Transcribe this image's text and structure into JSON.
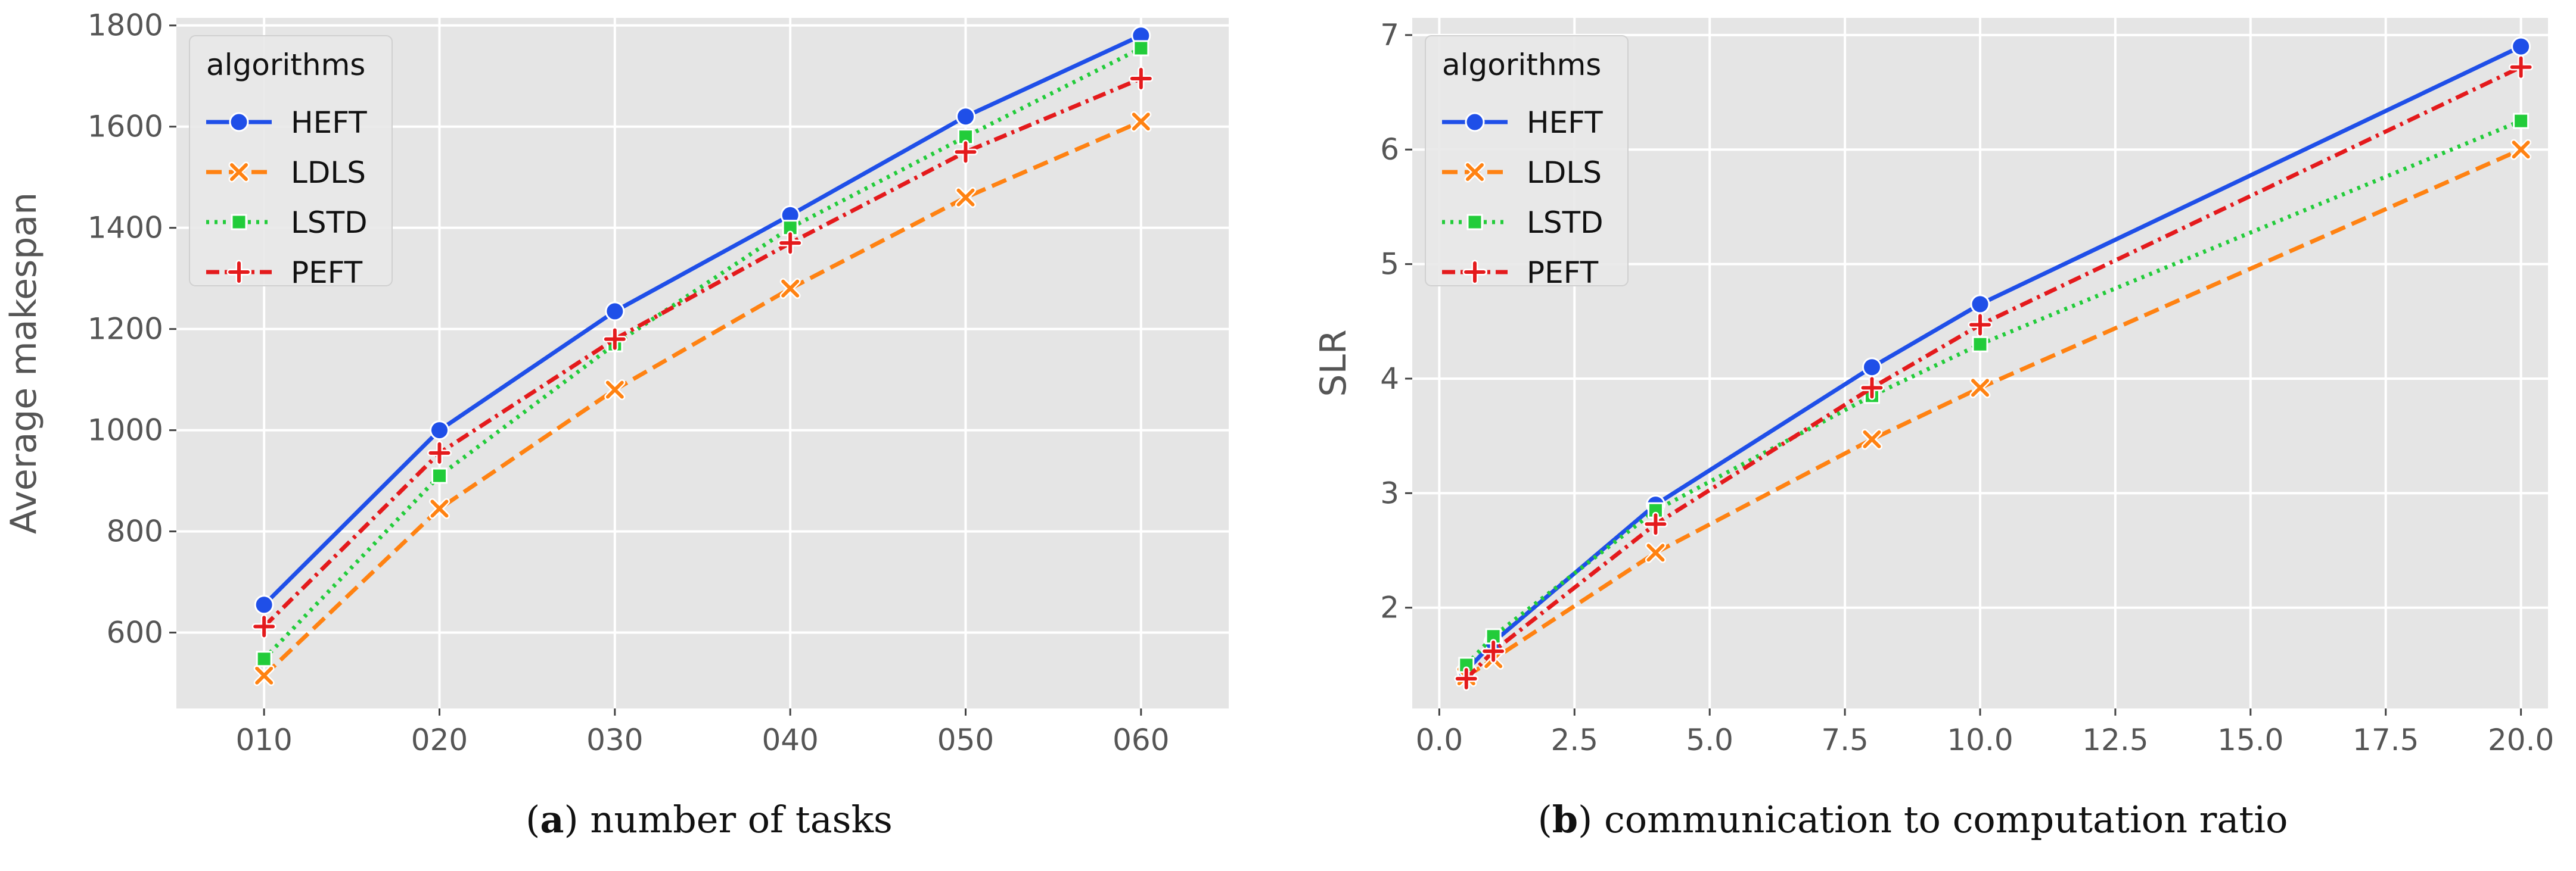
{
  "chart_data": [
    {
      "type": "line",
      "caption": {
        "label": "a",
        "text": "number of tasks"
      },
      "xlabel": "",
      "ylabel": "Average makespan",
      "categories": [
        "010",
        "020",
        "030",
        "040",
        "050",
        "060"
      ],
      "ylim": [
        450,
        1815
      ],
      "yticks": [
        600,
        800,
        1000,
        1200,
        1400,
        1600,
        1800
      ],
      "ytick_labels": [
        "600",
        "800",
        "1000",
        "1200",
        "1400",
        "1600",
        "1800"
      ],
      "grid": true,
      "legend": {
        "title": "algorithms",
        "placement": "top-left"
      },
      "series": [
        {
          "name": "HEFT",
          "values": [
            655,
            1000,
            1235,
            1425,
            1620,
            1780
          ]
        },
        {
          "name": "LDLS",
          "values": [
            515,
            845,
            1080,
            1280,
            1460,
            1610
          ]
        },
        {
          "name": "LSTD",
          "values": [
            548,
            910,
            1170,
            1400,
            1580,
            1755
          ]
        },
        {
          "name": "PEFT",
          "values": [
            612,
            955,
            1180,
            1370,
            1550,
            1695
          ]
        }
      ]
    },
    {
      "type": "line",
      "caption": {
        "label": "b",
        "text": "communication to computation ratio"
      },
      "xlabel": "",
      "ylabel": "SLR",
      "x": [
        0.5,
        1.0,
        4.0,
        8.0,
        10.0,
        20.0
      ],
      "xlim": [
        -0.5,
        20.5
      ],
      "xticks": [
        0.0,
        2.5,
        5.0,
        7.5,
        10.0,
        12.5,
        15.0,
        17.5,
        20.0
      ],
      "xtick_labels": [
        "0.0",
        "2.5",
        "5.0",
        "7.5",
        "10.0",
        "12.5",
        "15.0",
        "17.5",
        "20.0"
      ],
      "ylim": [
        1.12,
        7.15
      ],
      "yticks": [
        2,
        3,
        4,
        5,
        6,
        7
      ],
      "ytick_labels": [
        "2",
        "3",
        "4",
        "5",
        "6",
        "7"
      ],
      "grid": true,
      "legend": {
        "title": "algorithms",
        "placement": "top-left"
      },
      "series": [
        {
          "name": "HEFT",
          "values": [
            1.45,
            1.7,
            2.9,
            4.1,
            4.65,
            6.9
          ]
        },
        {
          "name": "LDLS",
          "values": [
            1.4,
            1.55,
            2.48,
            3.47,
            3.92,
            6.0
          ]
        },
        {
          "name": "LSTD",
          "values": [
            1.5,
            1.75,
            2.85,
            3.85,
            4.3,
            6.25
          ]
        },
        {
          "name": "PEFT",
          "values": [
            1.38,
            1.62,
            2.73,
            3.92,
            4.47,
            6.72
          ]
        }
      ]
    }
  ],
  "styles": {
    "HEFT": {
      "color": "#1f4fe8",
      "dash": "",
      "marker": "circle"
    },
    "LDLS": {
      "color": "#ff8212",
      "dash": "dashed",
      "marker": "x"
    },
    "LSTD": {
      "color": "#22cc3a",
      "dash": "dotted",
      "marker": "square"
    },
    "PEFT": {
      "color": "#e41a1c",
      "dash": "dashdot",
      "marker": "plus"
    },
    "panel_bg": "#e5e5e5",
    "grid": "#ffffff",
    "tick_text": "#555555"
  }
}
